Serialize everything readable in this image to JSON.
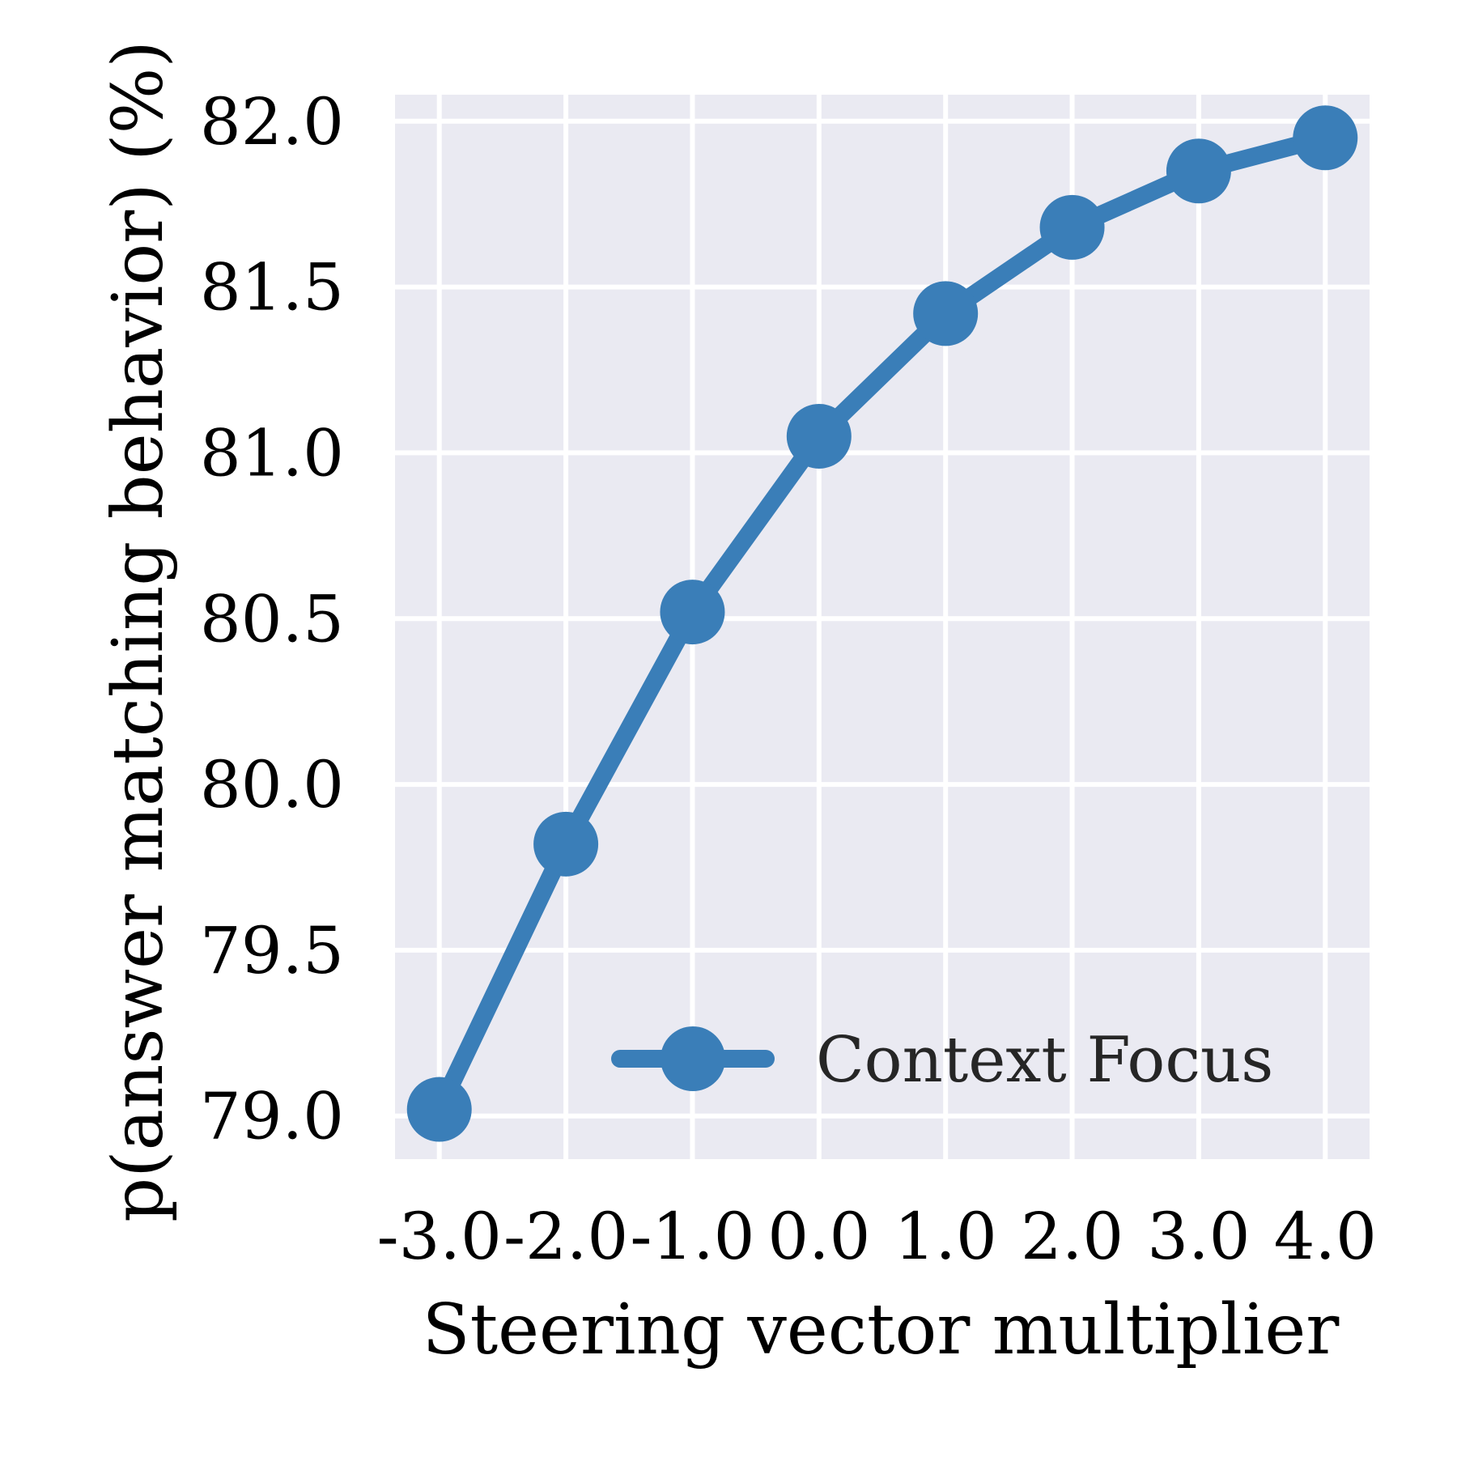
{
  "chart_data": {
    "type": "line",
    "title": "",
    "xlabel": "Steering vector multiplier",
    "ylabel": "p(answer matching behavior) (%)",
    "x": [
      -3.0,
      -2.0,
      -1.0,
      0.0,
      1.0,
      2.0,
      3.0,
      4.0
    ],
    "x_tick_labels": [
      "-3.0",
      "-2.0",
      "-1.0",
      "0.0",
      "1.0",
      "2.0",
      "3.0",
      "4.0"
    ],
    "y_ticks": [
      79.0,
      79.5,
      80.0,
      80.5,
      81.0,
      81.5,
      82.0
    ],
    "y_tick_labels": [
      "79.0",
      "79.5",
      "80.0",
      "80.5",
      "81.0",
      "81.5",
      "82.0"
    ],
    "xlim": [
      -3.35,
      4.35
    ],
    "ylim": [
      78.87,
      82.08
    ],
    "grid": true,
    "legend_position": "lower-right",
    "series": [
      {
        "name": "Context Focus",
        "color": "#3a7eb8",
        "values": [
          79.02,
          79.82,
          80.52,
          81.05,
          81.42,
          81.68,
          81.85,
          81.95
        ]
      }
    ]
  },
  "style": {
    "plot_background": "#eaeaf2",
    "grid_color": "#ffffff"
  }
}
